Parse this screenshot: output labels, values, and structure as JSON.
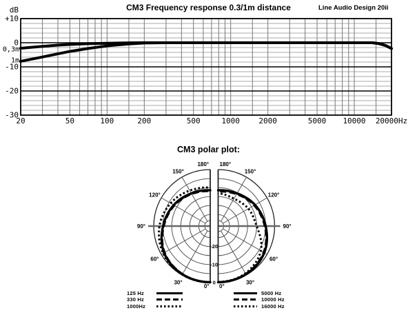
{
  "colors": {
    "background": "#ffffff",
    "line": "#000000",
    "grid_minor_horizontal": "#aaaaaa",
    "grid_vertical": "#777777",
    "grid_major": "#000000",
    "polar_grid": "#555555",
    "polar_axis": "#222222"
  },
  "chart_data": [
    {
      "id": "frequency_response",
      "type": "line",
      "title": "CM3 Frequency response 0.3/1m distance",
      "brand": "Line Audio Design 20ii",
      "ylabel": "dB",
      "x_scale": "log",
      "xlim": [
        20,
        20000
      ],
      "ylim": [
        -30,
        10
      ],
      "grid": true,
      "y_major_ticks": {
        "values": [
          10,
          0,
          -10,
          -20,
          -30
        ],
        "labels": [
          "+10",
          "0",
          "-10",
          "-20",
          "-30"
        ]
      },
      "y_minor_step": 2,
      "x_ticks": {
        "values": [
          20,
          50,
          100,
          200,
          500,
          1000,
          2000,
          5000,
          10000,
          20000
        ],
        "labels": [
          "20",
          "50",
          "100",
          "200",
          "500",
          "1000",
          "2000",
          "5000",
          "10000",
          "20000Hz"
        ]
      },
      "x_grid_multipliers": [
        1,
        1.5,
        2,
        3,
        4,
        5,
        6,
        7,
        8,
        9
      ],
      "series": [
        {
          "name": "0,3m",
          "label_db": -2.6,
          "points": [
            [
              20,
              -2.3
            ],
            [
              30,
              -1.5
            ],
            [
              40,
              -1.0
            ],
            [
              50,
              -0.7
            ],
            [
              70,
              -0.4
            ],
            [
              100,
              -0.2
            ],
            [
              150,
              -0.05
            ],
            [
              200,
              0
            ],
            [
              1000,
              0
            ],
            [
              5000,
              0
            ],
            [
              14000,
              0
            ],
            [
              16000,
              -0.4
            ],
            [
              18000,
              -1.2
            ],
            [
              20000,
              -2.4
            ]
          ]
        },
        {
          "name": "1m",
          "label_db": -7.2,
          "points": [
            [
              20,
              -7.7
            ],
            [
              30,
              -5.9
            ],
            [
              40,
              -4.6
            ],
            [
              50,
              -3.6
            ],
            [
              70,
              -2.4
            ],
            [
              100,
              -1.3
            ],
            [
              150,
              -0.5
            ],
            [
              200,
              -0.1
            ],
            [
              300,
              0
            ],
            [
              1000,
              0
            ],
            [
              5000,
              0
            ],
            [
              14000,
              0
            ],
            [
              16000,
              -0.4
            ],
            [
              18000,
              -1.2
            ],
            [
              20000,
              -2.4
            ]
          ]
        }
      ]
    },
    {
      "id": "polar_plot",
      "type": "polar",
      "title": "CM3 polar plot:",
      "rlim": [
        -30,
        0
      ],
      "r_circle_step_db": 5,
      "r_ticks": {
        "values": [
          0,
          -10,
          -20
        ],
        "labels": [
          "0",
          "-10",
          "-20"
        ]
      },
      "angle_step": 30,
      "angle_tick_labels": [
        "0°",
        "30°",
        "60°",
        "90°",
        "120°",
        "150°",
        "180°"
      ],
      "halves": {
        "left": {
          "series": [
            {
              "name": "125 Hz",
              "style": "solid",
              "points": [
                [
                  0,
                  -0.2
                ],
                [
                  30,
                  -0.5
                ],
                [
                  60,
                  -1.8
                ],
                [
                  90,
                  -5.2
                ],
                [
                  120,
                  -8.0
                ],
                [
                  150,
                  -10.4
                ],
                [
                  180,
                  -11.5
                ]
              ]
            },
            {
              "name": "330 Hz",
              "style": "dashed",
              "points": [
                [
                  0,
                  -0.2
                ],
                [
                  30,
                  -0.6
                ],
                [
                  60,
                  -2.1
                ],
                [
                  90,
                  -5.6
                ],
                [
                  120,
                  -8.4
                ],
                [
                  150,
                  -10.8
                ],
                [
                  180,
                  -12.0
                ]
              ]
            },
            {
              "name": "1000Hz",
              "style": "dotted",
              "points": [
                [
                  0,
                  -0.1
                ],
                [
                  30,
                  -0.3
                ],
                [
                  60,
                  -1.2
                ],
                [
                  90,
                  -3.2
                ],
                [
                  120,
                  -6.0
                ],
                [
                  150,
                  -8.6
                ],
                [
                  180,
                  -10.0
                ]
              ]
            }
          ]
        },
        "right": {
          "series": [
            {
              "name": "5000 Hz",
              "style": "solid",
              "points": [
                [
                  0,
                  -0.2
                ],
                [
                  30,
                  -0.5
                ],
                [
                  60,
                  -1.8
                ],
                [
                  90,
                  -5.0
                ],
                [
                  120,
                  -7.8
                ],
                [
                  150,
                  -10.4
                ],
                [
                  180,
                  -11.5
                ]
              ]
            },
            {
              "name": "10000 Hz",
              "style": "dashed",
              "points": [
                [
                  0,
                  -0.2
                ],
                [
                  30,
                  -0.7
                ],
                [
                  60,
                  -2.2
                ],
                [
                  90,
                  -5.5
                ],
                [
                  120,
                  -8.3
                ],
                [
                  150,
                  -10.9
                ],
                [
                  180,
                  -12.2
                ]
              ]
            },
            {
              "name": "16000 Hz",
              "style": "dotted",
              "points": [
                [
                  0,
                  -0.3
                ],
                [
                  30,
                  -1.1
                ],
                [
                  60,
                  -4.0
                ],
                [
                  90,
                  -10.0
                ],
                [
                  120,
                  -12.0
                ],
                [
                  150,
                  -13.8
                ],
                [
                  180,
                  -13.2
                ]
              ]
            }
          ]
        }
      }
    }
  ],
  "polar_legend": {
    "left": [
      {
        "label": "125 Hz",
        "style": "solid"
      },
      {
        "label": "330 Hz",
        "style": "dashed"
      },
      {
        "label": "1000Hz",
        "style": "dotted"
      }
    ],
    "right": [
      {
        "label": "5000 Hz",
        "style": "solid"
      },
      {
        "label": "10000 Hz",
        "style": "dashed"
      },
      {
        "label": "16000 Hz",
        "style": "dotted"
      }
    ]
  }
}
